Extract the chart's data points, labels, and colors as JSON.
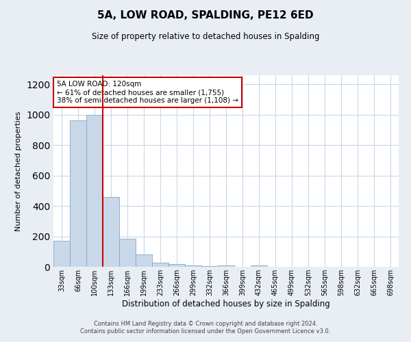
{
  "title": "5A, LOW ROAD, SPALDING, PE12 6ED",
  "subtitle": "Size of property relative to detached houses in Spalding",
  "xlabel": "Distribution of detached houses by size in Spalding",
  "ylabel": "Number of detached properties",
  "bin_labels": [
    "33sqm",
    "66sqm",
    "100sqm",
    "133sqm",
    "166sqm",
    "199sqm",
    "233sqm",
    "266sqm",
    "299sqm",
    "332sqm",
    "366sqm",
    "399sqm",
    "432sqm",
    "465sqm",
    "499sqm",
    "532sqm",
    "565sqm",
    "598sqm",
    "632sqm",
    "665sqm",
    "698sqm"
  ],
  "bar_values": [
    170,
    965,
    998,
    460,
    185,
    80,
    25,
    17,
    10,
    5,
    10,
    0,
    10,
    0,
    0,
    0,
    0,
    0,
    0,
    0,
    0
  ],
  "bar_color": "#c8d8e8",
  "bar_edge_color": "#7aaccc",
  "ylim": [
    0,
    1260
  ],
  "yticks": [
    0,
    200,
    400,
    600,
    800,
    1000,
    1200
  ],
  "red_line_x": 2.5,
  "annotation_text": "5A LOW ROAD: 120sqm\n← 61% of detached houses are smaller (1,755)\n38% of semi-detached houses are larger (1,108) →",
  "annotation_box_color": "#ffffff",
  "annotation_border_color": "#cc0000",
  "footer_line1": "Contains HM Land Registry data © Crown copyright and database right 2024.",
  "footer_line2": "Contains public sector information licensed under the Open Government Licence v3.0.",
  "background_color": "#e8eef4",
  "plot_background_color": "#ffffff",
  "grid_color": "#c8d8e8"
}
